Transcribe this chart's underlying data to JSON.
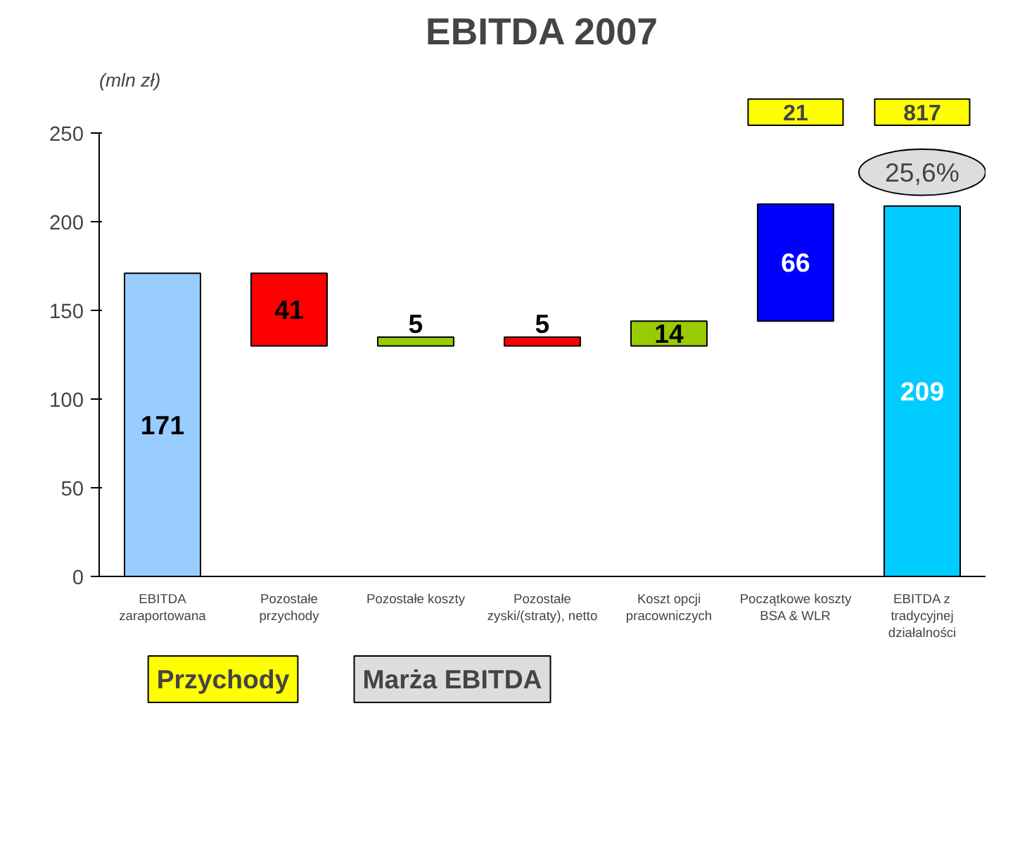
{
  "chart_data": {
    "type": "bar",
    "title": "EBITDA 2007",
    "ylabel": "(mln zł)",
    "categories": [
      "EBITDA\nzaraportowana",
      "Pozostałe\nprzychody",
      "Pozostałe koszty",
      "Pozostałe\nzyski/(straty), netto",
      "Koszt opcji\npracowniczych",
      "Początkowe koszty\nBSA & WLR",
      "EBITDA z\ntradycyjnej\ndziałalności"
    ],
    "values": [
      171,
      41,
      5,
      5,
      14,
      66,
      209
    ],
    "base": [
      0,
      130,
      130,
      130,
      130,
      144,
      0
    ],
    "colors": [
      "#99ccff",
      "#ff0000",
      "#99cc00",
      "#ff0000",
      "#99cc00",
      "#0000ff",
      "#00ccff"
    ],
    "data_labels": true,
    "ylim": [
      0,
      270
    ],
    "yticks": [
      0,
      50,
      100,
      150,
      200,
      250
    ],
    "grid": false,
    "annotations": [
      "Przychody",
      "Marża EBITDA",
      "21",
      "817",
      "25,6%"
    ]
  }
}
